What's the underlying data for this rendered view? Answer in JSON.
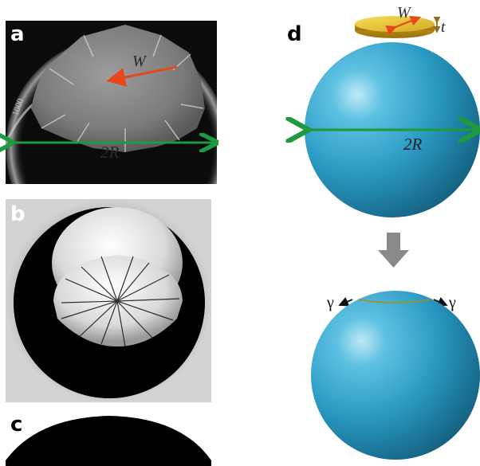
{
  "panels": {
    "a": {
      "label": "a",
      "width_symbol": "W",
      "diameter_symbol": "2R"
    },
    "b": {
      "label": "b"
    },
    "c": {
      "label": "c"
    },
    "d": {
      "label": "d",
      "width_symbol": "W",
      "thickness_symbol": "t",
      "diameter_symbol": "2R",
      "tension_symbol": "γ"
    }
  },
  "colors": {
    "sphere": "#2a9bc4",
    "disk": "#e0b92a",
    "green_arrow": "#1f9a3e",
    "red_arrow": "#e8461d",
    "down_arrow": "#8a8a8a"
  }
}
